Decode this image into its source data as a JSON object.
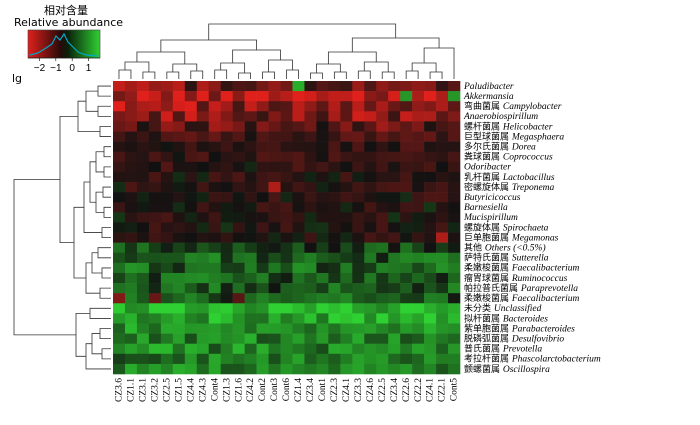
{
  "legend": {
    "title_cn": "相对含量",
    "title_en": "Relative abundance",
    "ticks": [
      "−2",
      "−1",
      "0",
      "1"
    ],
    "scale_label": "lg",
    "colors": {
      "low": "#e0201b",
      "mid": "#111111",
      "high": "#2fd132",
      "histogram": "#00a8c8"
    }
  },
  "chart_data": {
    "type": "heatmap",
    "title": "",
    "colorbar_label": "Relative abundance (lg)",
    "colorbar_range": [
      -2.5,
      1.5
    ],
    "columns": [
      "CZ3.6",
      "CZ1.1",
      "CZ3.1",
      "CZ3.2",
      "CZ2.5",
      "CZ1.5",
      "CZ4.4",
      "CZ4.3",
      "Cont4",
      "CZ1.3",
      "CZ1.6",
      "CZ4.2",
      "Cont2",
      "Cont3",
      "Cont6",
      "CZ1.4",
      "CZ3.4",
      "Cont1",
      "CZ2.3",
      "CZ4.1",
      "CZ3.3",
      "CZ4.6",
      "CZ2.5",
      "CZ3.4",
      "CZ2.6",
      "CZ2.2",
      "CZ4.1",
      "CZ2.1",
      "Cont5"
    ],
    "rows": [
      {
        "cn": "",
        "latin": "Paludibacter"
      },
      {
        "cn": "",
        "latin": "Akkermansia"
      },
      {
        "cn": "弯曲菌属",
        "latin": "Campylobacter"
      },
      {
        "cn": "",
        "latin": "Anaerobiospirillum"
      },
      {
        "cn": "螺杆菌属",
        "latin": "Helicobacter"
      },
      {
        "cn": "巨型球菌属",
        "latin": "Megasphaera"
      },
      {
        "cn": "多尔氏菌属",
        "latin": "Dorea"
      },
      {
        "cn": "粪球菌属",
        "latin": "Coprococcus"
      },
      {
        "cn": "",
        "latin": "Odoribacter"
      },
      {
        "cn": "乳杆菌属",
        "latin": "Lactobacillus"
      },
      {
        "cn": "密螺旋体属",
        "latin": "Treponema"
      },
      {
        "cn": "",
        "latin": "Butyricicoccus"
      },
      {
        "cn": "",
        "latin": "Barnesiella"
      },
      {
        "cn": "",
        "latin": "Mucispirillum"
      },
      {
        "cn": "螺旋体属",
        "latin": "Spirochaeta"
      },
      {
        "cn": "巨单胞菌属",
        "latin": "Megamonas"
      },
      {
        "cn": "其他",
        "latin": "Others (<0.5%)"
      },
      {
        "cn": "萨特氏菌属",
        "latin": "Sutterella"
      },
      {
        "cn": "柔嫩梭菌属",
        "latin": "Faecalibacterium"
      },
      {
        "cn": "瘤胃球菌属",
        "latin": "Ruminococcus"
      },
      {
        "cn": "帕拉普氏菌属",
        "latin": "Paraprevotella"
      },
      {
        "cn": "柔嫩梭菌属",
        "latin": "Faecalibacterium"
      },
      {
        "cn": "未分类",
        "latin": "Unclassified"
      },
      {
        "cn": "拟杆菌属",
        "latin": "Bacteroides"
      },
      {
        "cn": "紫单胞菌属",
        "latin": "Parabacteroides"
      },
      {
        "cn": "脱磷弧菌属",
        "latin": "Desulfovibrio"
      },
      {
        "cn": "普氏菌属",
        "latin": "Prevotella"
      },
      {
        "cn": "考拉杆菌属",
        "latin": "Phascolarctobacterium"
      },
      {
        "cn": "颤螺菌属",
        "latin": "Oscillospira"
      }
    ],
    "row_base": [
      -1.3,
      -2.1,
      -1.7,
      -1.5,
      -1.0,
      -0.7,
      -0.5,
      -0.45,
      -0.4,
      -0.35,
      -0.35,
      -0.35,
      -0.3,
      -0.3,
      -0.3,
      -0.4,
      0.3,
      0.5,
      0.55,
      0.5,
      0.45,
      0.5,
      1.3,
      1.1,
      0.9,
      0.8,
      0.85,
      0.75,
      0.8
    ],
    "special_cells": [
      {
        "row": 0,
        "col": 15,
        "value": 1.2
      },
      {
        "row": 1,
        "col": 24,
        "value": 1.0
      },
      {
        "row": 1,
        "col": 28,
        "value": 1.0
      },
      {
        "row": 10,
        "col": 13,
        "value": -2.0
      },
      {
        "row": 15,
        "col": 27,
        "value": -2.0
      },
      {
        "row": 21,
        "col": 0,
        "value": -1.5
      },
      {
        "row": 21,
        "col": 3,
        "value": -1.2
      },
      {
        "row": 21,
        "col": 10,
        "value": -1.0
      }
    ]
  }
}
